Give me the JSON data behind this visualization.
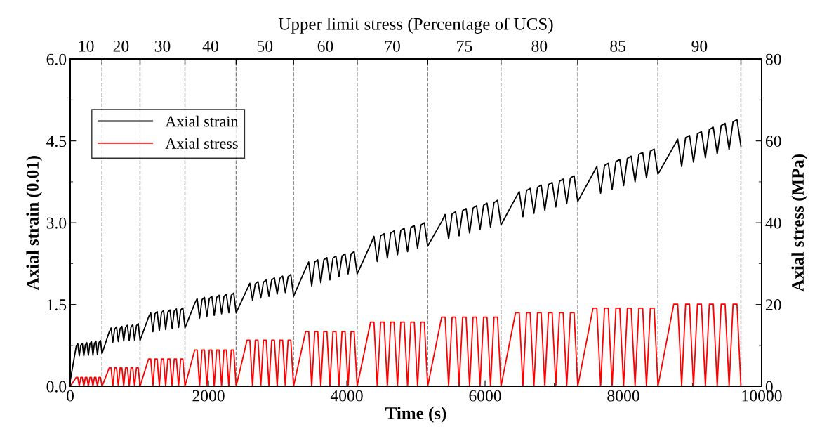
{
  "chart_data": {
    "type": "line",
    "xlabel": "Time (s)",
    "ylabel": "Axial strain (0.01)",
    "y2label": "Axial stress (MPa)",
    "x2label": "Upper limit stress (Percentage of UCS)",
    "xlim": [
      0,
      10000
    ],
    "xticks": [
      0,
      2000,
      4000,
      6000,
      8000,
      10000
    ],
    "ylim": [
      0,
      6.0
    ],
    "yticks": [
      {
        "value": 0,
        "label": "0.0"
      },
      {
        "value": 1.5,
        "label": "1.5"
      },
      {
        "value": 3.0,
        "label": "3.0"
      },
      {
        "value": 4.5,
        "label": "4.5"
      },
      {
        "value": 6.0,
        "label": "6.0"
      }
    ],
    "y2lim": [
      0,
      80
    ],
    "y2ticks": [
      0,
      20,
      40,
      60,
      80
    ],
    "annotations": [
      "10",
      "20",
      "30",
      "40",
      "50",
      "60",
      "70",
      "75",
      "80",
      "85",
      "90"
    ],
    "ref_lines": [
      {
        "axis": "x",
        "value": 460,
        "color": "#808080",
        "line_style": "dashed"
      },
      {
        "axis": "x",
        "value": 1010,
        "color": "#808080",
        "line_style": "dashed"
      },
      {
        "axis": "x",
        "value": 1660,
        "color": "#808080",
        "line_style": "dashed"
      },
      {
        "axis": "x",
        "value": 2400,
        "color": "#808080",
        "line_style": "dashed"
      },
      {
        "axis": "x",
        "value": 3230,
        "color": "#808080",
        "line_style": "dashed"
      },
      {
        "axis": "x",
        "value": 4150,
        "color": "#808080",
        "line_style": "dashed"
      },
      {
        "axis": "x",
        "value": 5170,
        "color": "#808080",
        "line_style": "dashed"
      },
      {
        "axis": "x",
        "value": 6230,
        "color": "#808080",
        "line_style": "dashed"
      },
      {
        "axis": "x",
        "value": 7340,
        "color": "#808080",
        "line_style": "dashed"
      },
      {
        "axis": "x",
        "value": 8500,
        "color": "#808080",
        "line_style": "dashed"
      },
      {
        "axis": "x",
        "value": 9700,
        "color": "#808080",
        "line_style": "dashed"
      }
    ],
    "legend": "top left",
    "x": [
      0,
      88,
      110,
      131,
      153,
      175,
      197,
      219,
      241,
      263,
      285,
      307,
      329,
      350,
      372,
      394,
      416,
      438,
      460,
      565,
      591,
      617,
      643,
      670,
      696,
      722,
      748,
      774,
      800,
      827,
      853,
      879,
      905,
      931,
      958,
      984,
      1010,
      1134,
      1165,
      1196,
      1227,
      1258,
      1289,
      1320,
      1350,
      1381,
      1412,
      1443,
      1474,
      1505,
      1536,
      1567,
      1598,
      1629,
      1660,
      1801,
      1836,
      1871,
      1907,
      1942,
      1977,
      2012,
      2048,
      2083,
      2118,
      2153,
      2189,
      2224,
      2259,
      2294,
      2330,
      2365,
      2400,
      2558,
      2598,
      2637,
      2677,
      2716,
      2756,
      2795,
      2835,
      2874,
      2914,
      2953,
      2993,
      3032,
      3072,
      3111,
      3151,
      3190,
      3230,
      3405,
      3449,
      3493,
      3537,
      3580,
      3624,
      3668,
      3712,
      3756,
      3800,
      3843,
      3887,
      3931,
      3975,
      4019,
      4062,
      4106,
      4150,
      4344,
      4393,
      4441,
      4490,
      4539,
      4587,
      4636,
      4684,
      4733,
      4781,
      4830,
      4879,
      4927,
      4976,
      5024,
      5073,
      5121,
      5170,
      5372,
      5422,
      5473,
      5523,
      5574,
      5624,
      5675,
      5725,
      5776,
      5826,
      5877,
      5927,
      5978,
      6028,
      6079,
      6129,
      6180,
      6230,
      6441,
      6494,
      6547,
      6600,
      6653,
      6706,
      6759,
      6811,
      6864,
      6917,
      6970,
      7023,
      7076,
      7129,
      7181,
      7234,
      7287,
      7340,
      7561,
      7616,
      7671,
      7727,
      7782,
      7837,
      7892,
      7948,
      8003,
      8058,
      8113,
      8169,
      8224,
      8279,
      8334,
      8390,
      8445,
      8500,
      8729,
      8786,
      8843,
      8900,
      8957,
      9014,
      9071,
      9129,
      9186,
      9243,
      9300,
      9357,
      9414,
      9471,
      9529,
      9586,
      9643,
      9700
    ],
    "series": [
      {
        "name": "Axial strain",
        "color": "#000000",
        "values": [
          0.1,
          0.74,
          0.78,
          0.56,
          0.75,
          0.79,
          0.56,
          0.76,
          0.8,
          0.57,
          0.78,
          0.82,
          0.57,
          0.79,
          0.83,
          0.58,
          0.8,
          0.84,
          0.6,
          1.0,
          1.07,
          0.81,
          1.05,
          1.09,
          0.82,
          1.06,
          1.1,
          0.83,
          1.08,
          1.12,
          0.84,
          1.09,
          1.13,
          0.85,
          1.11,
          1.15,
          0.84,
          1.27,
          1.35,
          1.0,
          1.33,
          1.37,
          1.02,
          1.35,
          1.39,
          1.04,
          1.36,
          1.4,
          1.06,
          1.38,
          1.42,
          1.08,
          1.4,
          1.44,
          1.07,
          1.52,
          1.61,
          1.25,
          1.59,
          1.63,
          1.28,
          1.61,
          1.65,
          1.3,
          1.63,
          1.67,
          1.33,
          1.65,
          1.69,
          1.35,
          1.67,
          1.71,
          1.35,
          1.78,
          1.89,
          1.58,
          1.88,
          1.92,
          1.62,
          1.91,
          1.95,
          1.65,
          1.95,
          1.99,
          1.69,
          1.98,
          2.02,
          1.72,
          2.01,
          2.05,
          1.65,
          2.16,
          2.28,
          1.84,
          2.28,
          2.32,
          1.9,
          2.32,
          2.36,
          1.95,
          2.35,
          2.39,
          2.01,
          2.39,
          2.43,
          2.06,
          2.43,
          2.47,
          2.06,
          2.6,
          2.75,
          2.29,
          2.76,
          2.8,
          2.35,
          2.81,
          2.85,
          2.41,
          2.86,
          2.9,
          2.47,
          2.91,
          2.95,
          2.53,
          2.96,
          3.0,
          2.57,
          3.02,
          3.15,
          2.7,
          3.16,
          3.2,
          2.76,
          3.22,
          3.26,
          2.81,
          3.27,
          3.31,
          2.87,
          3.32,
          3.36,
          2.92,
          3.37,
          3.41,
          2.96,
          3.45,
          3.57,
          3.11,
          3.59,
          3.63,
          3.17,
          3.65,
          3.69,
          3.23,
          3.7,
          3.74,
          3.29,
          3.76,
          3.8,
          3.35,
          3.82,
          3.86,
          3.39,
          3.9,
          4.03,
          3.54,
          4.05,
          4.09,
          3.61,
          4.12,
          4.16,
          3.68,
          4.18,
          4.22,
          3.75,
          4.25,
          4.29,
          3.82,
          4.31,
          4.35,
          3.89,
          4.4,
          4.53,
          4.03,
          4.56,
          4.6,
          4.11,
          4.63,
          4.67,
          4.19,
          4.71,
          4.75,
          4.26,
          4.78,
          4.82,
          4.34,
          4.85,
          4.89,
          4.4
        ]
      },
      {
        "name": "Axial stress",
        "color": "#ff0000",
        "axis": "y2",
        "values": [
          0,
          2.2,
          2.2,
          0,
          2.2,
          2.2,
          0,
          2.2,
          2.2,
          0,
          2.2,
          2.2,
          0,
          2.2,
          2.2,
          0,
          2.2,
          2.2,
          0,
          4.5,
          4.5,
          0,
          4.5,
          4.5,
          0,
          4.5,
          4.5,
          0,
          4.5,
          4.5,
          0,
          4.5,
          4.5,
          0,
          4.5,
          4.5,
          0,
          6.7,
          6.7,
          0,
          6.7,
          6.7,
          0,
          6.7,
          6.7,
          0,
          6.7,
          6.7,
          0,
          6.7,
          6.7,
          0,
          6.7,
          6.7,
          0,
          8.9,
          8.9,
          0,
          8.9,
          8.9,
          0,
          8.9,
          8.9,
          0,
          8.9,
          8.9,
          0,
          8.9,
          8.9,
          0,
          8.9,
          8.9,
          0,
          11.3,
          11.3,
          0,
          11.3,
          11.3,
          0,
          11.3,
          11.3,
          0,
          11.3,
          11.3,
          0,
          11.3,
          11.3,
          0,
          11.3,
          11.3,
          0,
          13.4,
          13.4,
          0,
          13.4,
          13.4,
          0,
          13.4,
          13.4,
          0,
          13.4,
          13.4,
          0,
          13.4,
          13.4,
          0,
          13.4,
          13.4,
          0,
          15.7,
          15.7,
          0,
          15.7,
          15.7,
          0,
          15.7,
          15.7,
          0,
          15.7,
          15.7,
          0,
          15.7,
          15.7,
          0,
          15.7,
          15.7,
          0,
          16.9,
          16.9,
          0,
          16.9,
          16.9,
          0,
          16.9,
          16.9,
          0,
          16.9,
          16.9,
          0,
          16.9,
          16.9,
          0,
          16.9,
          16.9,
          0,
          18.0,
          18.0,
          0,
          18.0,
          18.0,
          0,
          18.0,
          18.0,
          0,
          18.0,
          18.0,
          0,
          18.0,
          18.0,
          0,
          18.0,
          18.0,
          0,
          19.1,
          19.1,
          0,
          19.1,
          19.1,
          0,
          19.1,
          19.1,
          0,
          19.1,
          19.1,
          0,
          19.1,
          19.1,
          0,
          19.1,
          19.1,
          0,
          20.1,
          20.1,
          0,
          20.1,
          20.1,
          0,
          20.1,
          20.1,
          0,
          20.1,
          20.1,
          0,
          20.1,
          20.1,
          0,
          20.1,
          20.1,
          0
        ]
      }
    ]
  }
}
